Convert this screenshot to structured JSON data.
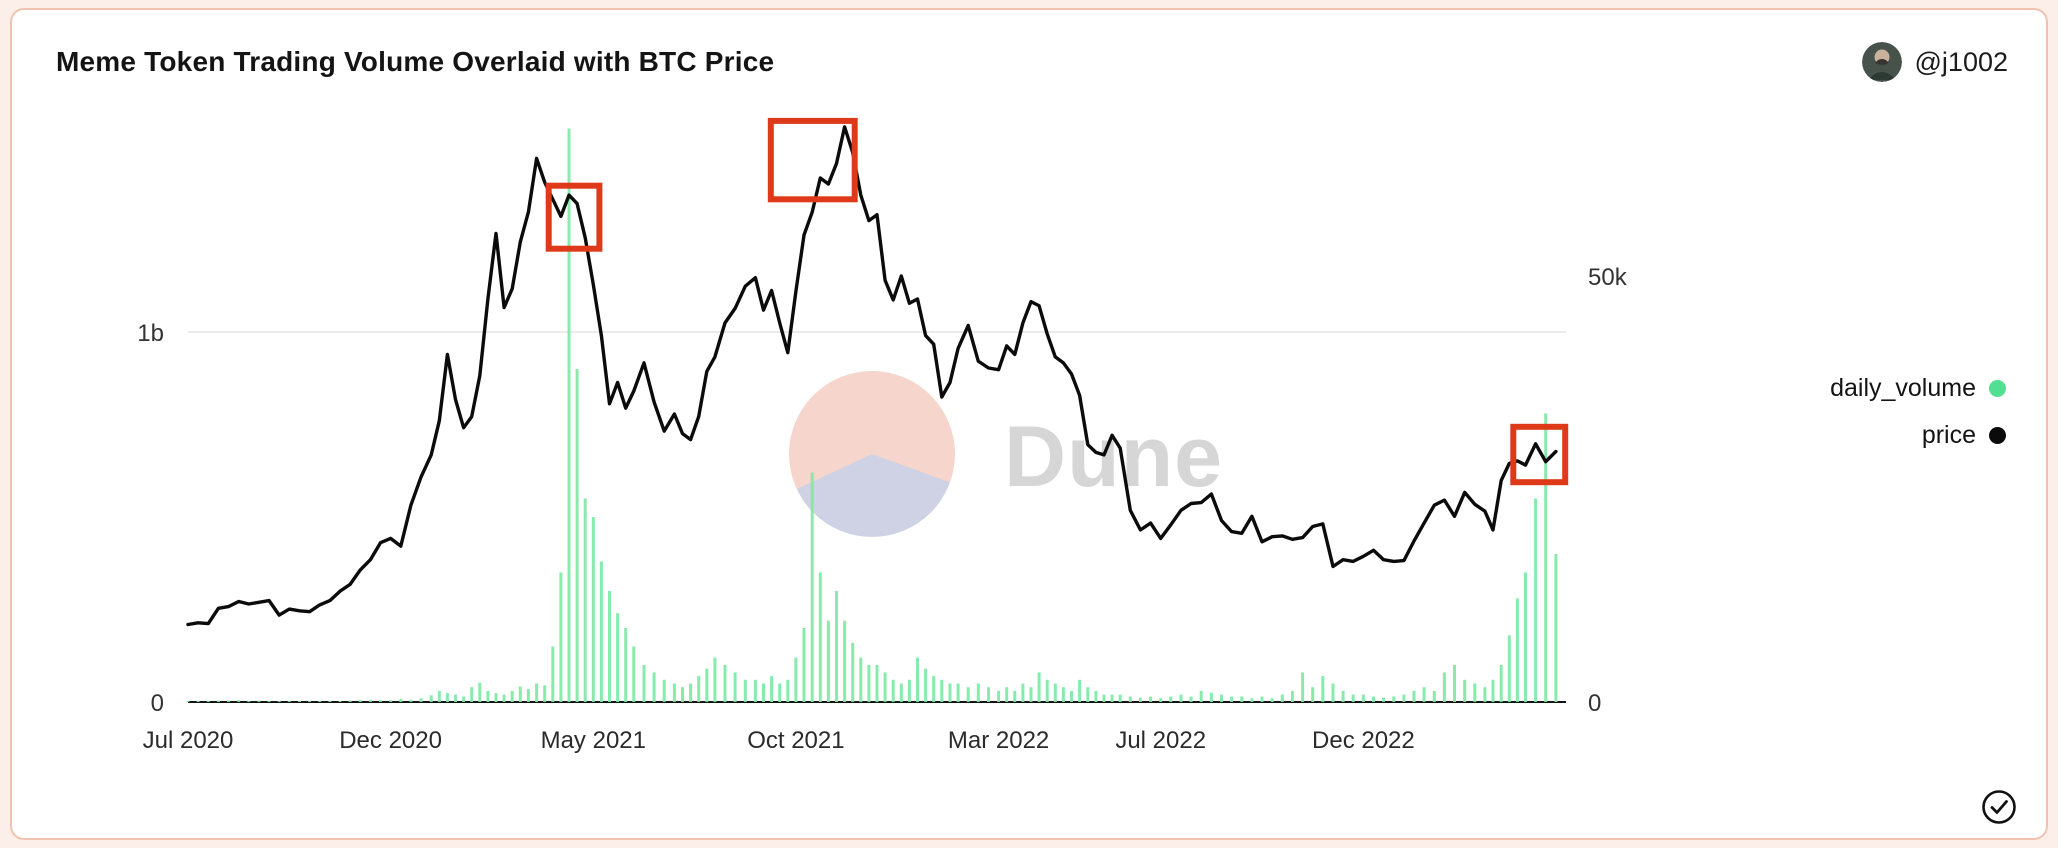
{
  "header": {
    "title": "Meme Token Trading Volume Overlaid with BTC Price",
    "user_handle": "@j1002"
  },
  "watermark": {
    "text": "Dune"
  },
  "legend": {
    "items": [
      {
        "label": "daily_volume",
        "color": "#52df92"
      },
      {
        "label": "price",
        "color": "#0b0b0b"
      }
    ]
  },
  "status_icon": "check-circle",
  "chart_data": {
    "type": "bar+line",
    "title": "Meme Token Trading Volume Overlaid with BTC Price",
    "x_start_month": "2020-07",
    "months_span": 34,
    "grid": "horizontal line at left-axis 1b only",
    "legend_position": "right",
    "x_ticks": [
      {
        "label": "Jul 2020",
        "m": 0
      },
      {
        "label": "Dec 2020",
        "m": 5
      },
      {
        "label": "May 2021",
        "m": 10
      },
      {
        "label": "Oct 2021",
        "m": 15
      },
      {
        "label": "Mar 2022",
        "m": 20
      },
      {
        "label": "Jul 2022",
        "m": 24
      },
      {
        "label": "Dec 2022",
        "m": 29
      }
    ],
    "y_left": {
      "series": "daily_volume",
      "unit": "USD (billions)",
      "grid_at": 1,
      "ticks": [
        {
          "label": "0",
          "value": 0
        },
        {
          "label": "1b",
          "value": 1
        }
      ]
    },
    "y_right": {
      "series": "price",
      "unit": "USD (thousands)",
      "ticks": [
        {
          "label": "0",
          "value": 0
        },
        {
          "label": "50k",
          "value": 50
        }
      ]
    },
    "series": [
      {
        "name": "daily_volume",
        "type": "bar",
        "axis": "left",
        "unit": "billion_usd",
        "color": "#7deaa6"
      },
      {
        "name": "price",
        "type": "line",
        "axis": "right",
        "unit": "k_usd",
        "color": "#0b0b0b"
      }
    ],
    "months": [
      {
        "m": "2020-07",
        "price": [
          9.1,
          9.3,
          9.2,
          11.0
        ],
        "volume": [
          0.002,
          0.003,
          0.002,
          0.004
        ]
      },
      {
        "m": "2020-08",
        "price": [
          11.2,
          11.8,
          11.5,
          11.7
        ],
        "volume": [
          0.004,
          0.005,
          0.003,
          0.004
        ]
      },
      {
        "m": "2020-09",
        "price": [
          11.9,
          10.2,
          10.9,
          10.7
        ],
        "volume": [
          0.003,
          0.002,
          0.003,
          0.002
        ]
      },
      {
        "m": "2020-10",
        "price": [
          10.6,
          11.4,
          11.9,
          13.0
        ],
        "volume": [
          0.002,
          0.003,
          0.002,
          0.003
        ]
      },
      {
        "m": "2020-11",
        "price": [
          13.8,
          15.5,
          16.7,
          18.7
        ],
        "volume": [
          0.004,
          0.005,
          0.006,
          0.005
        ]
      },
      {
        "m": "2020-12",
        "price": [
          19.2,
          18.3,
          23.1,
          26.4
        ],
        "volume": [
          0.005,
          0.008,
          0.006,
          0.01
        ]
      },
      {
        "m": "2021-01",
        "price": [
          29.0,
          33.0,
          40.8,
          35.5,
          32.2
        ],
        "volume": [
          0.018,
          0.03,
          0.024,
          0.02,
          0.015
        ]
      },
      {
        "m": "2021-02",
        "price": [
          33.5,
          38.3,
          47.3,
          55.0,
          46.3
        ],
        "volume": [
          0.04,
          0.052,
          0.03,
          0.024,
          0.02
        ]
      },
      {
        "m": "2021-03",
        "price": [
          48.5,
          54.0,
          57.5,
          63.8,
          61.0
        ],
        "volume": [
          0.03,
          0.042,
          0.035,
          0.05,
          0.045
        ]
      },
      {
        "m": "2021-04",
        "price": [
          59.0,
          57.0,
          59.5,
          58.5,
          54.5
        ],
        "volume": [
          0.15,
          0.35,
          1.55,
          0.9,
          0.55
        ]
      },
      {
        "m": "2021-05",
        "price": [
          49.0,
          43.0,
          35.0,
          37.5,
          34.5
        ],
        "volume": [
          0.5,
          0.38,
          0.3,
          0.24,
          0.2
        ]
      },
      {
        "m": "2021-06",
        "price": [
          36.5,
          39.8,
          35.2,
          31.8
        ],
        "volume": [
          0.15,
          0.1,
          0.08,
          0.06
        ]
      },
      {
        "m": "2021-07",
        "price": [
          33.8,
          31.5,
          30.8,
          33.5,
          38.8
        ],
        "volume": [
          0.05,
          0.04,
          0.05,
          0.07,
          0.09
        ]
      },
      {
        "m": "2021-08",
        "price": [
          40.5,
          44.5,
          46.2,
          48.8
        ],
        "volume": [
          0.12,
          0.1,
          0.08,
          0.06
        ]
      },
      {
        "m": "2021-09",
        "price": [
          49.8,
          46.0,
          48.3,
          44.5,
          41.0
        ],
        "volume": [
          0.06,
          0.05,
          0.07,
          0.05,
          0.06
        ]
      },
      {
        "m": "2021-10",
        "price": [
          48.2,
          54.8,
          57.5,
          61.5,
          60.8
        ],
        "volume": [
          0.12,
          0.2,
          0.62,
          0.35,
          0.22
        ]
      },
      {
        "m": "2021-11",
        "price": [
          63.2,
          67.5,
          64.5,
          59.5,
          56.5
        ],
        "volume": [
          0.3,
          0.22,
          0.16,
          0.12,
          0.1
        ]
      },
      {
        "m": "2021-12",
        "price": [
          57.2,
          49.5,
          47.2,
          50.0,
          46.8
        ],
        "volume": [
          0.1,
          0.08,
          0.06,
          0.05,
          0.06
        ]
      },
      {
        "m": "2022-01",
        "price": [
          47.3,
          43.0,
          42.0,
          35.8,
          37.5
        ],
        "volume": [
          0.12,
          0.09,
          0.07,
          0.06,
          0.05
        ]
      },
      {
        "m": "2022-02",
        "price": [
          41.5,
          44.2,
          40.0,
          39.2
        ],
        "volume": [
          0.05,
          0.04,
          0.05,
          0.04
        ]
      },
      {
        "m": "2022-03",
        "price": [
          39.0,
          41.8,
          40.8,
          44.5,
          47.0
        ],
        "volume": [
          0.03,
          0.04,
          0.03,
          0.05,
          0.04
        ]
      },
      {
        "m": "2022-04",
        "price": [
          46.5,
          43.2,
          40.5,
          39.8,
          38.5
        ],
        "volume": [
          0.08,
          0.06,
          0.05,
          0.04,
          0.03
        ]
      },
      {
        "m": "2022-05",
        "price": [
          36.0,
          30.2,
          29.3,
          29.0,
          31.3
        ],
        "volume": [
          0.06,
          0.04,
          0.03,
          0.02,
          0.02
        ]
      },
      {
        "m": "2022-06",
        "price": [
          29.8,
          22.5,
          20.2,
          21.0
        ],
        "volume": [
          0.02,
          0.015,
          0.012,
          0.015
        ]
      },
      {
        "m": "2022-07",
        "price": [
          19.2,
          20.8,
          22.5,
          23.3
        ],
        "volume": [
          0.01,
          0.015,
          0.02,
          0.015
        ]
      },
      {
        "m": "2022-08",
        "price": [
          23.4,
          24.4,
          21.3,
          20.0
        ],
        "volume": [
          0.03,
          0.025,
          0.02,
          0.015
        ]
      },
      {
        "m": "2022-09",
        "price": [
          19.8,
          21.8,
          18.8,
          19.4
        ],
        "volume": [
          0.015,
          0.01,
          0.015,
          0.01
        ]
      },
      {
        "m": "2022-10",
        "price": [
          19.5,
          19.1,
          19.3,
          20.6
        ],
        "volume": [
          0.02,
          0.03,
          0.08,
          0.04
        ]
      },
      {
        "m": "2022-11",
        "price": [
          20.9,
          15.9,
          16.7,
          16.5
        ],
        "volume": [
          0.07,
          0.05,
          0.03,
          0.02
        ]
      },
      {
        "m": "2022-12",
        "price": [
          17.1,
          17.8,
          16.7,
          16.5
        ],
        "volume": [
          0.02,
          0.015,
          0.012,
          0.015
        ]
      },
      {
        "m": "2023-01",
        "price": [
          16.6,
          18.9,
          21.0,
          23.1
        ],
        "volume": [
          0.02,
          0.03,
          0.04,
          0.03
        ]
      },
      {
        "m": "2023-02",
        "price": [
          23.7,
          21.8,
          24.6,
          23.2
        ],
        "volume": [
          0.08,
          0.1,
          0.06,
          0.05
        ]
      },
      {
        "m": "2023-03",
        "price": [
          22.4,
          20.2,
          26.0,
          28.0,
          28.3
        ],
        "volume": [
          0.04,
          0.06,
          0.1,
          0.18,
          0.28
        ]
      },
      {
        "m": "2023-04",
        "price": [
          27.8,
          30.3,
          28.2,
          29.4
        ],
        "volume": [
          0.35,
          0.55,
          0.78,
          0.4
        ]
      }
    ],
    "highlights": {
      "color": "#de3919",
      "boxes": [
        {
          "t0": 8.9,
          "t1": 10.15,
          "p0": 53.2,
          "p1": 60.6
        },
        {
          "t0": 14.38,
          "t1": 16.45,
          "p0": 59.0,
          "p1": 68.2
        },
        {
          "t0": 32.7,
          "t1": 33.98,
          "p0": 25.8,
          "p1": 32.3
        }
      ]
    }
  }
}
